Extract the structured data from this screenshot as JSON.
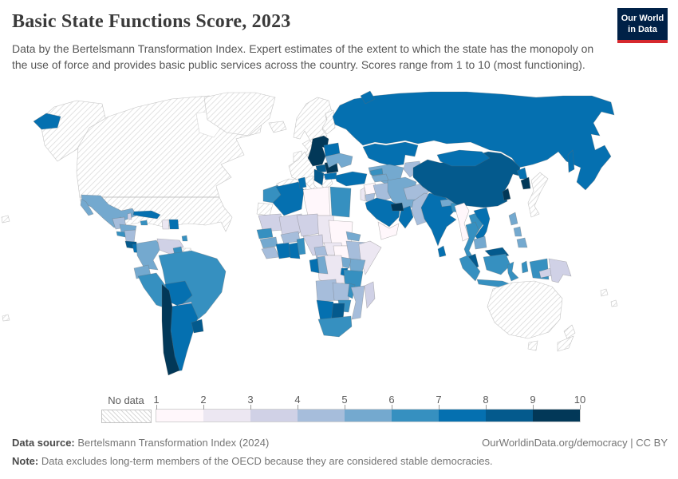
{
  "header": {
    "title": "Basic State Functions Score, 2023",
    "subtitle": "Data by the Bertelsmann Transformation Index. Expert estimates of the extent to which the state has the monopoly on the use of force and provides basic public services across the country. Scores range from 1 to 10 (most functioning).",
    "logo": {
      "line1": "Our World",
      "line2": "in Data",
      "bg": "#002147",
      "accent": "#d6282e"
    }
  },
  "legend": {
    "no_data_label": "No data",
    "tick_labels": [
      "1",
      "2",
      "3",
      "4",
      "5",
      "6",
      "7",
      "8",
      "9",
      "10"
    ]
  },
  "footer": {
    "source_label": "Data source:",
    "source_value": "Bertelsmann Transformation Index (2024)",
    "link": "OurWorldinData.org/democracy | CC BY",
    "note_label": "Note:",
    "note_value": "Data excludes long-term members of the OECD because they are considered stable democracies."
  },
  "chart_data": {
    "type": "choropleth",
    "title": "Basic State Functions Score, 2023",
    "value_range": [
      1,
      10
    ],
    "legend_position": "bottom",
    "border_color": "#6b6b6b",
    "no_data_stroke": "#c4c4c4",
    "palette": [
      {
        "range": "1-2",
        "color": "#fff7fb"
      },
      {
        "range": "2-3",
        "color": "#ece7f2"
      },
      {
        "range": "3-4",
        "color": "#d0d1e6"
      },
      {
        "range": "4-5",
        "color": "#a6bddb"
      },
      {
        "range": "5-6",
        "color": "#74a9cf"
      },
      {
        "range": "6-7",
        "color": "#3690c0"
      },
      {
        "range": "7-8",
        "color": "#0570b0"
      },
      {
        "range": "8-9",
        "color": "#045a8d"
      },
      {
        "range": "9-10",
        "color": "#023858"
      }
    ],
    "regions": {
      "canada": {
        "label": "Canada",
        "bin": "no-data"
      },
      "united-states": {
        "label": "United States",
        "bin": "no-data"
      },
      "greenland": {
        "label": "Greenland",
        "bin": "no-data"
      },
      "iceland": {
        "label": "Iceland",
        "bin": "no-data"
      },
      "united-kingdom": {
        "label": "United Kingdom",
        "bin": "no-data"
      },
      "ireland": {
        "label": "Ireland",
        "bin": "no-data"
      },
      "scandinavia": {
        "label": "Norway, Sweden & Finland",
        "bin": "no-data"
      },
      "western-europe": {
        "label": "Western Europe",
        "bin": "no-data"
      },
      "iberia": {
        "label": "Spain & Portugal",
        "bin": "no-data"
      },
      "italy": {
        "label": "Italy",
        "bin": "no-data"
      },
      "greece": {
        "label": "Greece",
        "bin": "no-data"
      },
      "japan": {
        "label": "Japan",
        "bin": "no-data"
      },
      "australia": {
        "label": "Australia",
        "bin": "no-data"
      },
      "new-zealand": {
        "label": "New Zealand",
        "bin": "no-data"
      },
      "suriname": {
        "label": "Suriname",
        "bin": "no-data"
      },
      "western-sahara": {
        "label": "Western Sahara",
        "bin": "no-data"
      },
      "pacific-islands": {
        "label": "Pacific islands",
        "bin": "no-data"
      },
      "russia": {
        "label": "Russia",
        "bin": "7-8"
      },
      "kazakhstan": {
        "label": "Kazakhstan",
        "bin": "7-8"
      },
      "mongolia": {
        "label": "Mongolia",
        "bin": "7-8"
      },
      "china": {
        "label": "China",
        "bin": "8-9"
      },
      "north-korea": {
        "label": "North Korea",
        "bin": "7-8"
      },
      "south-korea": {
        "label": "South Korea",
        "bin": "9-10"
      },
      "taiwan": {
        "label": "Taiwan",
        "bin": "9-10"
      },
      "belarus": {
        "label": "Belarus",
        "bin": "7-8"
      },
      "ukraine": {
        "label": "Ukraine",
        "bin": "5-6"
      },
      "poland-baltics": {
        "label": "Poland, Czechia, Slovakia & Baltics",
        "bin": "9-10"
      },
      "hungary": {
        "label": "Hungary",
        "bin": "8-9"
      },
      "romania": {
        "label": "Romania",
        "bin": "9-10"
      },
      "balkans": {
        "label": "Western Balkans",
        "bin": "8-9"
      },
      "bulgaria": {
        "label": "Bulgaria",
        "bin": "7-8"
      },
      "turkey": {
        "label": "Turkey",
        "bin": "7-8"
      },
      "georgia": {
        "label": "Georgia",
        "bin": "6-7"
      },
      "armenia-azerbaijan": {
        "label": "Armenia & Azerbaijan",
        "bin": "5-6"
      },
      "uzbekistan-turkmenistan": {
        "label": "Uzbekistan & Turkmenistan",
        "bin": "5-6"
      },
      "kyrgyzstan-tajikistan": {
        "label": "Kyrgyzstan & Tajikistan",
        "bin": "4-5"
      },
      "iran": {
        "label": "Iran",
        "bin": "5-6"
      },
      "iraq": {
        "label": "Iraq",
        "bin": "4-5"
      },
      "syria": {
        "label": "Syria",
        "bin": "1-2"
      },
      "lebanon": {
        "label": "Lebanon",
        "bin": "2-3"
      },
      "jordan": {
        "label": "Jordan",
        "bin": "4-5"
      },
      "saudi-arabia": {
        "label": "Saudi Arabia",
        "bin": "7-8"
      },
      "yemen": {
        "label": "Yemen",
        "bin": "1-2"
      },
      "oman": {
        "label": "Oman",
        "bin": "7-8"
      },
      "uae-qatar": {
        "label": "United Arab Emirates & Qatar",
        "bin": "9-10"
      },
      "afghanistan": {
        "label": "Afghanistan",
        "bin": "4-5"
      },
      "pakistan": {
        "label": "Pakistan",
        "bin": "4-5"
      },
      "india": {
        "label": "India",
        "bin": "7-8"
      },
      "nepal": {
        "label": "Nepal",
        "bin": "5-6"
      },
      "bangladesh": {
        "label": "Bangladesh",
        "bin": "6-7"
      },
      "sri-lanka": {
        "label": "Sri Lanka",
        "bin": "7-8"
      },
      "myanmar": {
        "label": "Myanmar",
        "bin": "1-2"
      },
      "thailand": {
        "label": "Thailand",
        "bin": "6-7"
      },
      "laos": {
        "label": "Laos",
        "bin": "6-7"
      },
      "vietnam": {
        "label": "Vietnam",
        "bin": "7-8"
      },
      "cambodia": {
        "label": "Cambodia",
        "bin": "5-6"
      },
      "malaysia": {
        "label": "Malaysia",
        "bin": "8-9"
      },
      "indonesia": {
        "label": "Indonesia",
        "bin": "6-7"
      },
      "timor-leste": {
        "label": "Timor-Leste",
        "bin": "3-4"
      },
      "philippines": {
        "label": "Philippines",
        "bin": "5-6"
      },
      "papua-new-guinea": {
        "label": "Papua New Guinea",
        "bin": "3-4"
      },
      "morocco": {
        "label": "Morocco",
        "bin": "6-7"
      },
      "algeria": {
        "label": "Algeria",
        "bin": "7-8"
      },
      "tunisia": {
        "label": "Tunisia",
        "bin": "7-8"
      },
      "libya": {
        "label": "Libya",
        "bin": "1-2"
      },
      "egypt": {
        "label": "Egypt",
        "bin": "6-7"
      },
      "mauritania": {
        "label": "Mauritania",
        "bin": "3-4"
      },
      "mali": {
        "label": "Mali",
        "bin": "3-4"
      },
      "niger": {
        "label": "Niger",
        "bin": "3-4"
      },
      "chad": {
        "label": "Chad",
        "bin": "2-3"
      },
      "sudan": {
        "label": "Sudan",
        "bin": "1-2"
      },
      "senegal": {
        "label": "Senegal",
        "bin": "6-7"
      },
      "guinea": {
        "label": "Guinea",
        "bin": "5-6"
      },
      "sierra-leone-liberia": {
        "label": "Sierra Leone & Liberia",
        "bin": "4-5"
      },
      "ivory-coast": {
        "label": "Cote d'Ivoire",
        "bin": "7-8"
      },
      "ghana": {
        "label": "Ghana",
        "bin": "7-8"
      },
      "burkina-faso": {
        "label": "Burkina Faso",
        "bin": "4-5"
      },
      "togo-benin": {
        "label": "Togo & Benin",
        "bin": "6-7"
      },
      "nigeria": {
        "label": "Nigeria",
        "bin": "3-4"
      },
      "cameroon": {
        "label": "Cameroon",
        "bin": "4-5"
      },
      "central-african-republic": {
        "label": "Central African Republic",
        "bin": "2-3"
      },
      "south-sudan": {
        "label": "South Sudan",
        "bin": "1-2"
      },
      "eritrea": {
        "label": "Eritrea",
        "bin": "5-6"
      },
      "ethiopia": {
        "label": "Ethiopia",
        "bin": "4-5"
      },
      "somalia": {
        "label": "Somalia",
        "bin": "2-3"
      },
      "kenya": {
        "label": "Kenya",
        "bin": "5-6"
      },
      "uganda": {
        "label": "Uganda",
        "bin": "5-6"
      },
      "rwanda-burundi": {
        "label": "Rwanda & Burundi",
        "bin": "7-8"
      },
      "drc": {
        "label": "Democratic Republic of Congo",
        "bin": "2-3"
      },
      "gabon": {
        "label": "Gabon",
        "bin": "7-8"
      },
      "congo": {
        "label": "Congo",
        "bin": "5-6"
      },
      "tanzania": {
        "label": "Tanzania",
        "bin": "6-7"
      },
      "angola": {
        "label": "Angola",
        "bin": "4-5"
      },
      "zambia": {
        "label": "Zambia",
        "bin": "4-5"
      },
      "malawi": {
        "label": "Malawi",
        "bin": "6-7"
      },
      "mozambique": {
        "label": "Mozambique",
        "bin": "4-5"
      },
      "zimbabwe": {
        "label": "Zimbabwe",
        "bin": "6-7"
      },
      "botswana": {
        "label": "Botswana",
        "bin": "8-9"
      },
      "namibia": {
        "label": "Namibia",
        "bin": "7-8"
      },
      "south-africa": {
        "label": "South Africa",
        "bin": "6-7"
      },
      "madagascar": {
        "label": "Madagascar",
        "bin": "3-4"
      },
      "mexico": {
        "label": "Mexico",
        "bin": "5-6"
      },
      "belize": {
        "label": "Belize",
        "bin": "3-4"
      },
      "guatemala": {
        "label": "Guatemala",
        "bin": "4-5"
      },
      "honduras": {
        "label": "Honduras",
        "bin": "5-6"
      },
      "el-salvador": {
        "label": "El Salvador",
        "bin": "6-7"
      },
      "nicaragua": {
        "label": "Nicaragua",
        "bin": "4-5"
      },
      "costa-rica": {
        "label": "Costa Rica",
        "bin": "8-9"
      },
      "panama": {
        "label": "Panama",
        "bin": "7-8"
      },
      "cuba": {
        "label": "Cuba",
        "bin": "7-8"
      },
      "jamaica": {
        "label": "Jamaica",
        "bin": "6-7"
      },
      "haiti": {
        "label": "Haiti",
        "bin": "2-3"
      },
      "dominican-republic": {
        "label": "Dominican Republic",
        "bin": "7-8"
      },
      "trinidad-tobago": {
        "label": "Trinidad and Tobago",
        "bin": "6-7"
      },
      "colombia": {
        "label": "Colombia",
        "bin": "5-6"
      },
      "venezuela": {
        "label": "Venezuela",
        "bin": "3-4"
      },
      "guyana": {
        "label": "Guyana",
        "bin": "6-7"
      },
      "ecuador": {
        "label": "Ecuador",
        "bin": "5-6"
      },
      "peru": {
        "label": "Peru",
        "bin": "6-7"
      },
      "brazil": {
        "label": "Brazil",
        "bin": "6-7"
      },
      "bolivia": {
        "label": "Bolivia",
        "bin": "7-8"
      },
      "paraguay": {
        "label": "Paraguay",
        "bin": "3-4"
      },
      "chile": {
        "label": "Chile",
        "bin": "9-10"
      },
      "argentina": {
        "label": "Argentina",
        "bin": "7-8"
      },
      "uruguay": {
        "label": "Uruguay",
        "bin": "8-9"
      }
    }
  }
}
